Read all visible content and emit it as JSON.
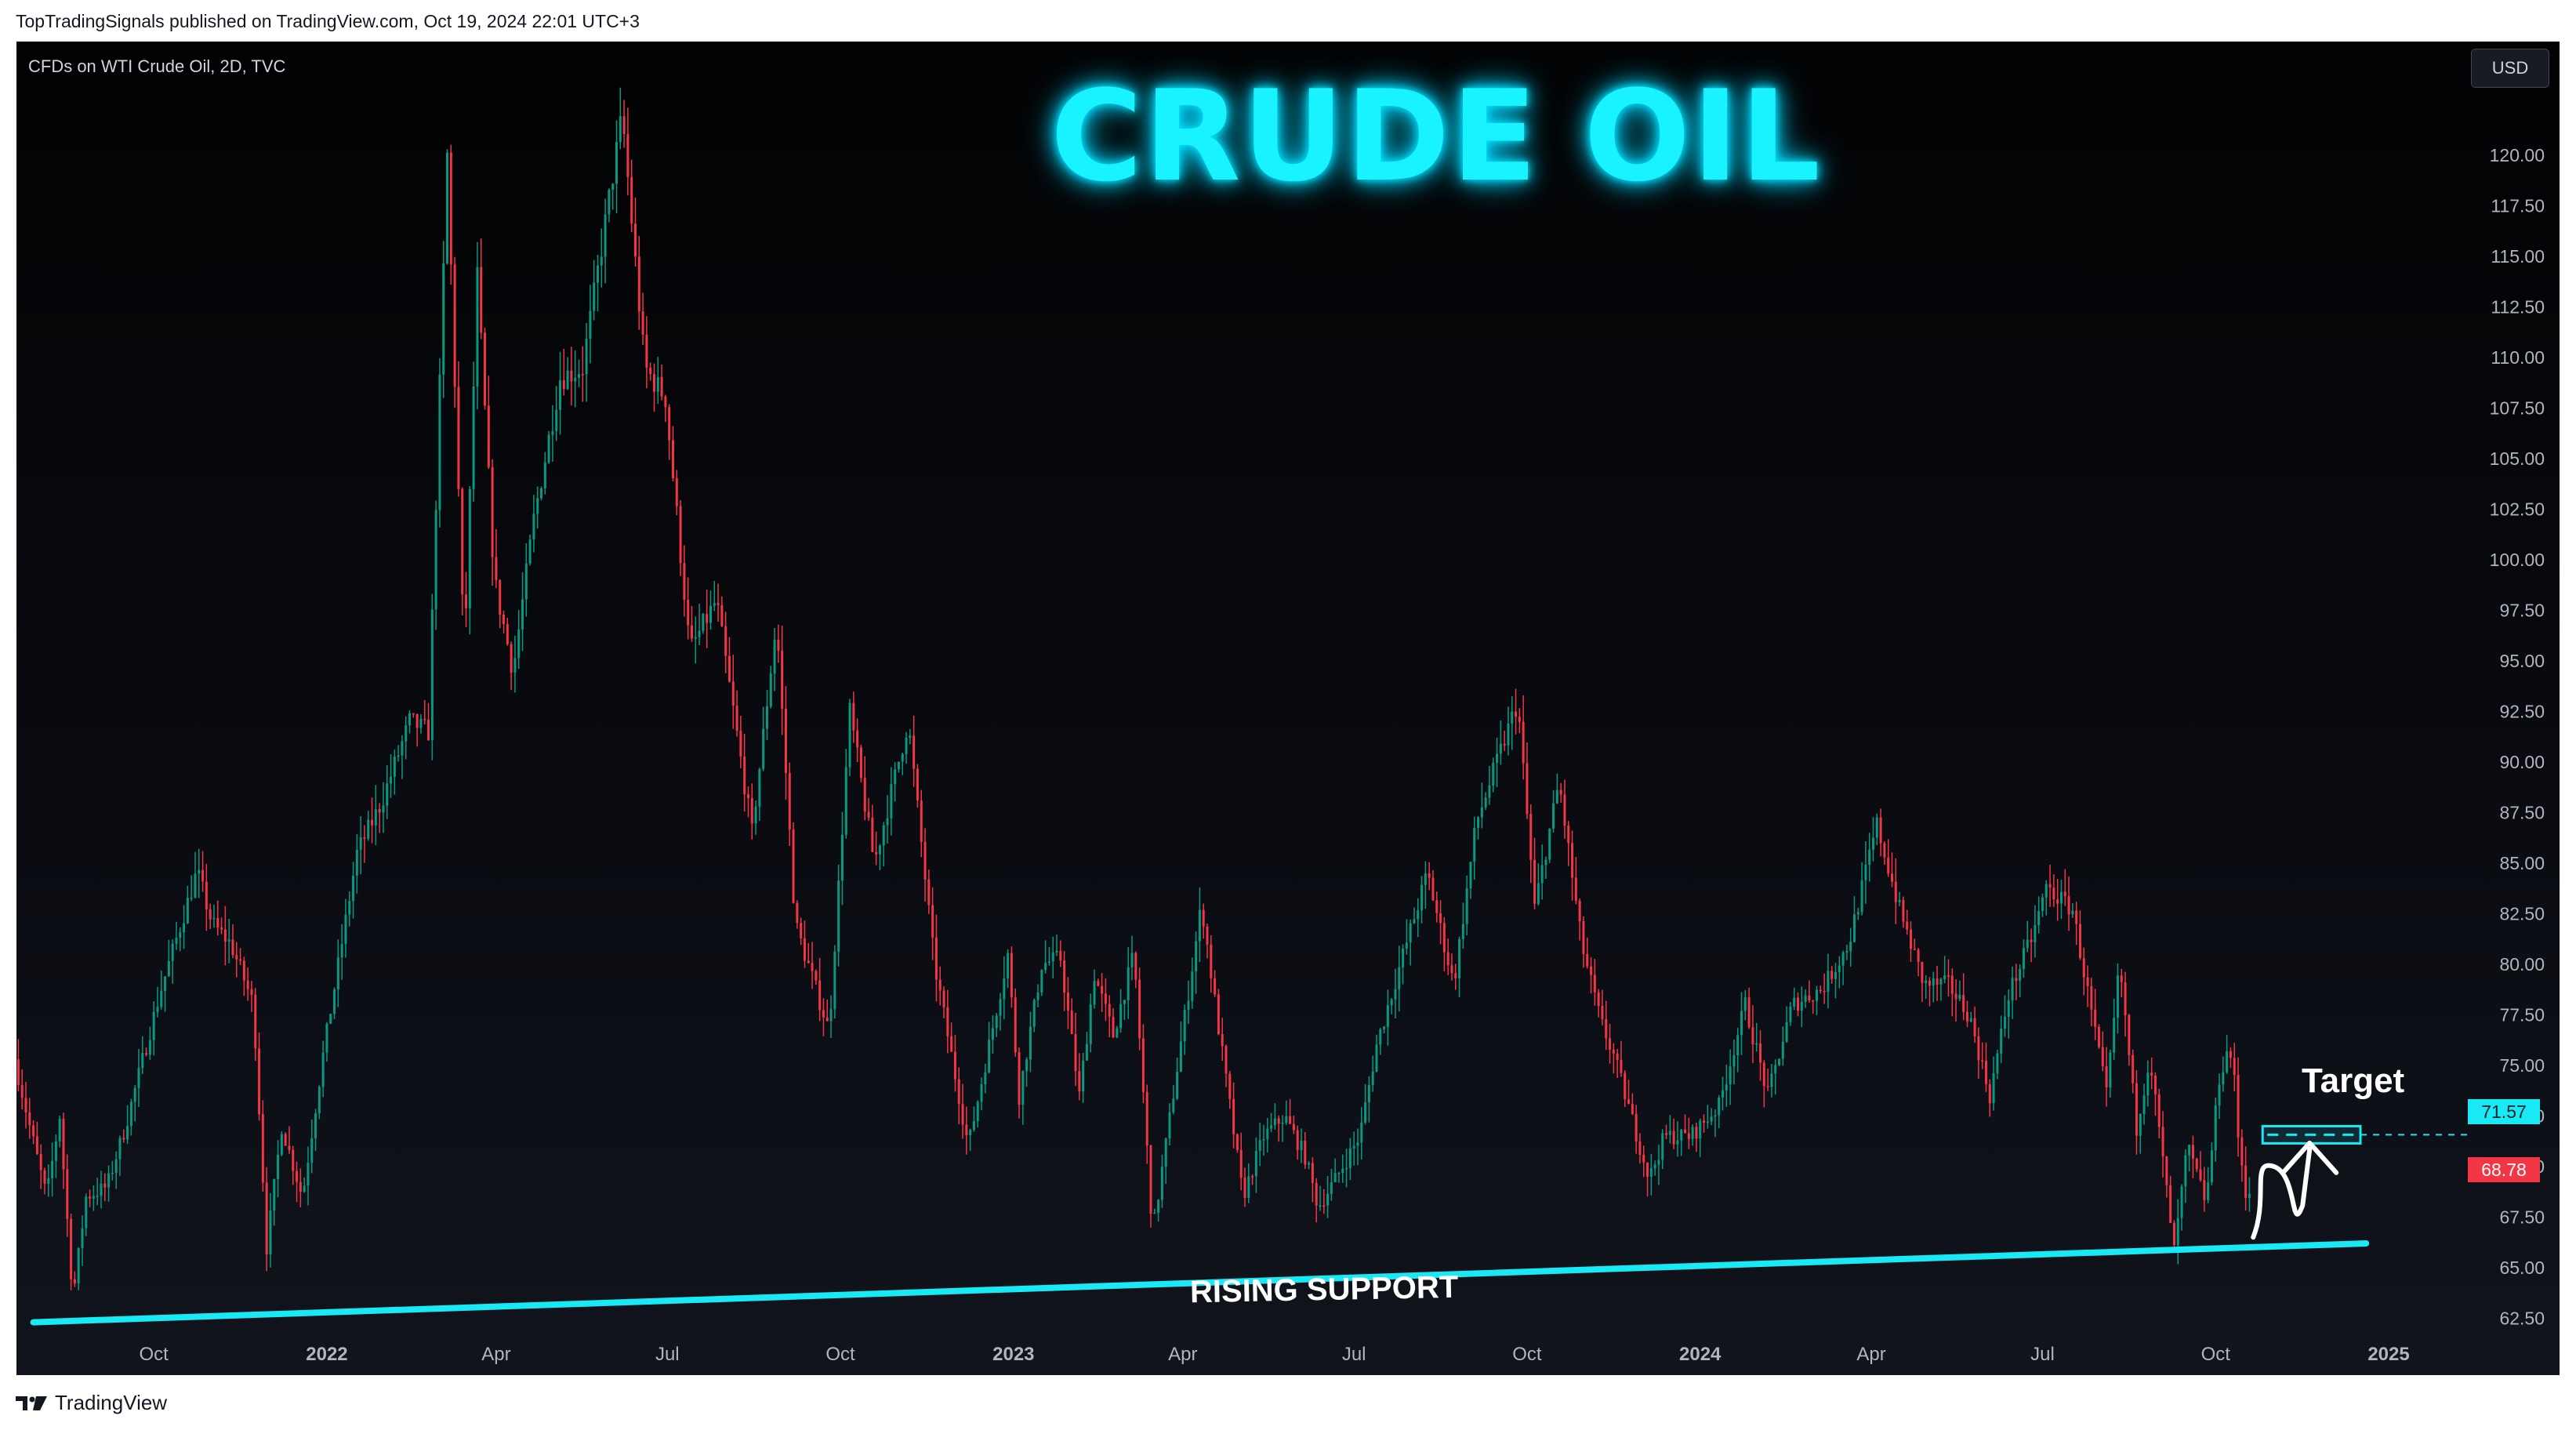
{
  "header": {
    "published_line": "TopTradingSignals published on TradingView.com, Oct 19, 2024 22:01 UTC+3"
  },
  "chart_header": {
    "symbol_info": "CFDs on WTI Crude Oil, 2D, TVC",
    "title": "CRUDE OIL",
    "currency": "USD"
  },
  "footer": {
    "brand": "TradingView"
  },
  "colors": {
    "up_candle": "#089981",
    "down_candle": "#f23645",
    "support_line": "#19e8f5",
    "title_glow": "#19f3ff",
    "background": "#05070b"
  },
  "chart_data": {
    "type": "candlestick",
    "title": "CRUDE OIL",
    "x_tick_labels": [
      "Oct",
      "2022",
      "Apr",
      "Jul",
      "Oct",
      "2023",
      "Apr",
      "Jul",
      "Oct",
      "2024",
      "Apr",
      "Jul",
      "Oct",
      "2025"
    ],
    "x_tick_dates": [
      "2021-10-01",
      "2022-01-01",
      "2022-04-01",
      "2022-07-01",
      "2022-10-01",
      "2023-01-01",
      "2023-04-01",
      "2023-07-01",
      "2023-10-01",
      "2024-01-01",
      "2024-04-01",
      "2024-07-01",
      "2024-10-01",
      "2025-01-01"
    ],
    "y_tick_labels": [
      "120.00",
      "117.50",
      "115.00",
      "112.50",
      "110.00",
      "107.50",
      "105.00",
      "102.50",
      "100.00",
      "97.50",
      "95.00",
      "92.50",
      "90.00",
      "87.50",
      "85.00",
      "82.50",
      "80.00",
      "77.50",
      "75.00",
      "72.50",
      "70.00",
      "67.50",
      "65.00",
      "62.50"
    ],
    "ylim": [
      60.5,
      123.3
    ],
    "xlim": [
      "2021-07-20",
      "2025-02-05"
    ],
    "grid": false,
    "price_path": [
      [
        "2021-07-20",
        75.3
      ],
      [
        "2021-07-28",
        72.0
      ],
      [
        "2021-08-06",
        68.5
      ],
      [
        "2021-08-13",
        72.5
      ],
      [
        "2021-08-20",
        63.5
      ],
      [
        "2021-08-27",
        68.5
      ],
      [
        "2021-09-07",
        69.0
      ],
      [
        "2021-09-17",
        72.0
      ],
      [
        "2021-10-05",
        78.5
      ],
      [
        "2021-10-25",
        84.6
      ],
      [
        "2021-11-02",
        82.0
      ],
      [
        "2021-11-12",
        81.0
      ],
      [
        "2021-11-24",
        78.0
      ],
      [
        "2021-12-01",
        66.0
      ],
      [
        "2021-12-09",
        72.0
      ],
      [
        "2021-12-20",
        68.5
      ],
      [
        "2021-12-31",
        75.5
      ],
      [
        "2022-01-18",
        85.5
      ],
      [
        "2022-01-31",
        88.0
      ],
      [
        "2022-02-15",
        92.0
      ],
      [
        "2022-02-25",
        91.5
      ],
      [
        "2022-03-07",
        120.0
      ],
      [
        "2022-03-16",
        95.0
      ],
      [
        "2022-03-23",
        114.0
      ],
      [
        "2022-04-01",
        99.0
      ],
      [
        "2022-04-11",
        94.5
      ],
      [
        "2022-04-22",
        102.0
      ],
      [
        "2022-05-06",
        109.0
      ],
      [
        "2022-05-18",
        109.5
      ],
      [
        "2022-06-08",
        122.0
      ],
      [
        "2022-06-20",
        109.5
      ],
      [
        "2022-07-01",
        108.0
      ],
      [
        "2022-07-14",
        95.5
      ],
      [
        "2022-07-28",
        98.0
      ],
      [
        "2022-08-16",
        86.5
      ],
      [
        "2022-08-29",
        97.0
      ],
      [
        "2022-09-08",
        82.0
      ],
      [
        "2022-09-26",
        76.7
      ],
      [
        "2022-10-07",
        92.5
      ],
      [
        "2022-10-20",
        85.0
      ],
      [
        "2022-11-07",
        92.0
      ],
      [
        "2022-11-21",
        80.0
      ],
      [
        "2022-12-09",
        71.0
      ],
      [
        "2022-12-20",
        76.0
      ],
      [
        "2022-12-30",
        80.5
      ],
      [
        "2023-01-05",
        73.5
      ],
      [
        "2023-01-17",
        80.0
      ],
      [
        "2023-01-27",
        80.3
      ],
      [
        "2023-02-06",
        73.5
      ],
      [
        "2023-02-14",
        79.5
      ],
      [
        "2023-02-24",
        76.5
      ],
      [
        "2023-03-07",
        80.5
      ],
      [
        "2023-03-17",
        66.7
      ],
      [
        "2023-03-31",
        75.5
      ],
      [
        "2023-04-12",
        83.0
      ],
      [
        "2023-04-20",
        77.5
      ],
      [
        "2023-05-04",
        68.5
      ],
      [
        "2023-05-15",
        71.5
      ],
      [
        "2023-05-26",
        72.5
      ],
      [
        "2023-06-06",
        70.5
      ],
      [
        "2023-06-13",
        68.0
      ],
      [
        "2023-06-23",
        69.5
      ],
      [
        "2023-07-05",
        71.5
      ],
      [
        "2023-07-14",
        76.0
      ],
      [
        "2023-07-25",
        79.5
      ],
      [
        "2023-08-10",
        84.5
      ],
      [
        "2023-08-24",
        79.0
      ],
      [
        "2023-09-05",
        87.0
      ],
      [
        "2023-09-27",
        93.0
      ],
      [
        "2023-10-06",
        82.8
      ],
      [
        "2023-10-19",
        89.0
      ],
      [
        "2023-10-31",
        81.0
      ],
      [
        "2023-11-10",
        77.2
      ],
      [
        "2023-11-17",
        75.5
      ],
      [
        "2023-12-06",
        69.4
      ],
      [
        "2023-12-14",
        71.5
      ],
      [
        "2023-12-28",
        71.5
      ],
      [
        "2024-01-12",
        73.0
      ],
      [
        "2024-01-26",
        78.0
      ],
      [
        "2024-02-07",
        73.5
      ],
      [
        "2024-02-20",
        78.0
      ],
      [
        "2024-03-07",
        78.8
      ],
      [
        "2024-03-21",
        81.0
      ],
      [
        "2024-04-05",
        86.9
      ],
      [
        "2024-04-17",
        82.7
      ],
      [
        "2024-04-30",
        79.0
      ],
      [
        "2024-05-13",
        79.0
      ],
      [
        "2024-05-24",
        77.5
      ],
      [
        "2024-06-04",
        73.5
      ],
      [
        "2024-06-14",
        78.5
      ],
      [
        "2024-06-27",
        81.5
      ],
      [
        "2024-07-04",
        83.8
      ],
      [
        "2024-07-18",
        82.7
      ],
      [
        "2024-08-05",
        73.5
      ],
      [
        "2024-08-12",
        80.0
      ],
      [
        "2024-08-21",
        71.9
      ],
      [
        "2024-08-28",
        75.5
      ],
      [
        "2024-09-10",
        65.8
      ],
      [
        "2024-09-17",
        71.0
      ],
      [
        "2024-09-27",
        68.2
      ],
      [
        "2024-10-04",
        74.4
      ],
      [
        "2024-10-08",
        75.6
      ],
      [
        "2024-10-11",
        75.5
      ],
      [
        "2024-10-14",
        71.5
      ],
      [
        "2024-10-18",
        68.78
      ]
    ],
    "last_price": "68.78",
    "annotations": [
      {
        "type": "line",
        "label": "RISING SUPPORT",
        "points": [
          [
            "2021-07-29",
            62.3
          ],
          [
            "2024-12-20",
            66.2
          ]
        ]
      },
      {
        "type": "level",
        "label": "Target",
        "value": 71.57,
        "value_label": "71.57",
        "x_range": [
          "2024-10-26",
          "2024-12-17"
        ]
      },
      {
        "type": "arrow",
        "path": [
          [
            "2024-10-21",
            66.5
          ],
          [
            "2024-11-01",
            70.0
          ],
          [
            "2024-11-10",
            67.3
          ],
          [
            "2024-11-20",
            71.4
          ]
        ]
      }
    ]
  }
}
